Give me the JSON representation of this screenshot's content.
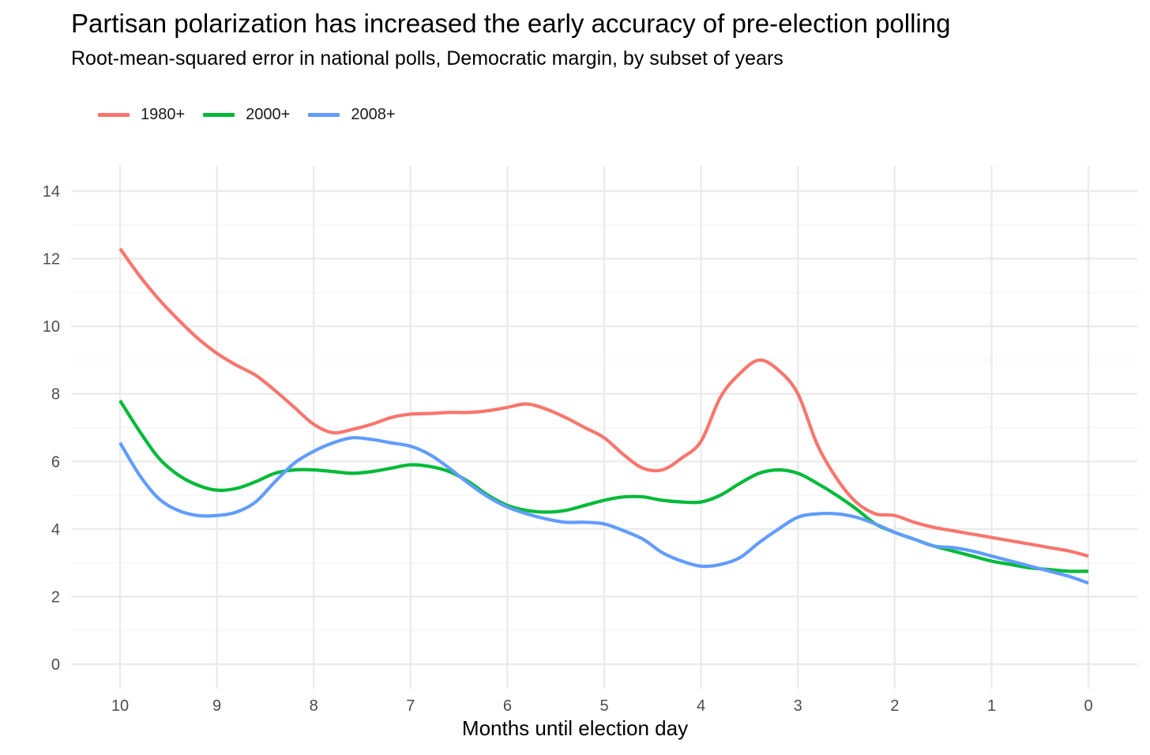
{
  "chart_data": {
    "type": "line",
    "title": "Partisan polarization has increased the early accuracy of pre-election polling",
    "subtitle": "Root-mean-squared error in national polls, Democratic margin, by subset of years",
    "xlabel": "Months until election day",
    "ylabel": "",
    "xlim": [
      10,
      0
    ],
    "ylim": [
      0,
      14
    ],
    "x_reversed": true,
    "x_ticks": [
      10,
      9,
      8,
      7,
      6,
      5,
      4,
      3,
      2,
      1,
      0
    ],
    "y_ticks": [
      0,
      2,
      4,
      6,
      8,
      10,
      12,
      14
    ],
    "grid": true,
    "legend_position": "top-left",
    "series": [
      {
        "name": "1980+",
        "color": "#F8766D",
        "x": [
          10,
          9.8,
          9.6,
          9.4,
          9.2,
          9,
          8.8,
          8.6,
          8.4,
          8.2,
          8,
          7.8,
          7.6,
          7.4,
          7.2,
          7,
          6.8,
          6.6,
          6.4,
          6.2,
          6,
          5.8,
          5.6,
          5.4,
          5.2,
          5,
          4.8,
          4.6,
          4.4,
          4.2,
          4,
          3.8,
          3.6,
          3.4,
          3.2,
          3,
          2.8,
          2.6,
          2.4,
          2.2,
          2,
          1.8,
          1.6,
          1.4,
          1.2,
          1,
          0.8,
          0.6,
          0.4,
          0.2,
          0
        ],
        "values": [
          12.3,
          11.5,
          10.8,
          10.2,
          9.65,
          9.2,
          8.85,
          8.55,
          8.1,
          7.6,
          7.1,
          6.85,
          6.95,
          7.1,
          7.3,
          7.4,
          7.42,
          7.45,
          7.45,
          7.5,
          7.6,
          7.7,
          7.55,
          7.3,
          7.0,
          6.7,
          6.2,
          5.8,
          5.75,
          6.1,
          6.6,
          7.9,
          8.6,
          9.0,
          8.7,
          8.0,
          6.5,
          5.5,
          4.8,
          4.45,
          4.4,
          4.2,
          4.05,
          3.95,
          3.85,
          3.75,
          3.65,
          3.55,
          3.45,
          3.35,
          3.2
        ]
      },
      {
        "name": "2000+",
        "color": "#00BA38",
        "x": [
          10,
          9.8,
          9.6,
          9.4,
          9.2,
          9,
          8.8,
          8.6,
          8.4,
          8.2,
          8,
          7.8,
          7.6,
          7.4,
          7.2,
          7,
          6.8,
          6.6,
          6.4,
          6.2,
          6,
          5.8,
          5.6,
          5.4,
          5.2,
          5,
          4.8,
          4.6,
          4.4,
          4.2,
          4,
          3.8,
          3.6,
          3.4,
          3.2,
          3,
          2.8,
          2.6,
          2.4,
          2.2,
          2,
          1.8,
          1.6,
          1.4,
          1.2,
          1,
          0.8,
          0.6,
          0.4,
          0.2,
          0
        ],
        "values": [
          7.8,
          6.9,
          6.1,
          5.6,
          5.3,
          5.15,
          5.2,
          5.4,
          5.65,
          5.75,
          5.75,
          5.7,
          5.65,
          5.7,
          5.8,
          5.9,
          5.85,
          5.7,
          5.4,
          5.0,
          4.7,
          4.55,
          4.5,
          4.55,
          4.7,
          4.85,
          4.95,
          4.95,
          4.85,
          4.8,
          4.8,
          5.0,
          5.35,
          5.65,
          5.75,
          5.65,
          5.35,
          5.0,
          4.6,
          4.15,
          3.9,
          3.7,
          3.5,
          3.35,
          3.2,
          3.05,
          2.95,
          2.85,
          2.8,
          2.75,
          2.75
        ]
      },
      {
        "name": "2008+",
        "color": "#619CFF",
        "x": [
          10,
          9.8,
          9.6,
          9.4,
          9.2,
          9,
          8.8,
          8.6,
          8.4,
          8.2,
          8,
          7.8,
          7.6,
          7.4,
          7.2,
          7,
          6.8,
          6.6,
          6.4,
          6.2,
          6,
          5.8,
          5.6,
          5.4,
          5.2,
          5,
          4.8,
          4.6,
          4.4,
          4.2,
          4,
          3.8,
          3.6,
          3.4,
          3.2,
          3,
          2.8,
          2.6,
          2.4,
          2.2,
          2,
          1.8,
          1.6,
          1.4,
          1.2,
          1,
          0.8,
          0.6,
          0.4,
          0.2,
          0
        ],
        "values": [
          6.55,
          5.6,
          4.9,
          4.55,
          4.4,
          4.4,
          4.5,
          4.8,
          5.4,
          5.95,
          6.3,
          6.55,
          6.7,
          6.65,
          6.55,
          6.45,
          6.2,
          5.8,
          5.35,
          4.95,
          4.65,
          4.45,
          4.3,
          4.2,
          4.2,
          4.15,
          3.95,
          3.7,
          3.3,
          3.05,
          2.9,
          2.95,
          3.15,
          3.6,
          4.0,
          4.35,
          4.45,
          4.45,
          4.35,
          4.15,
          3.9,
          3.7,
          3.5,
          3.45,
          3.35,
          3.2,
          3.05,
          2.9,
          2.75,
          2.6,
          2.4
        ]
      }
    ]
  }
}
